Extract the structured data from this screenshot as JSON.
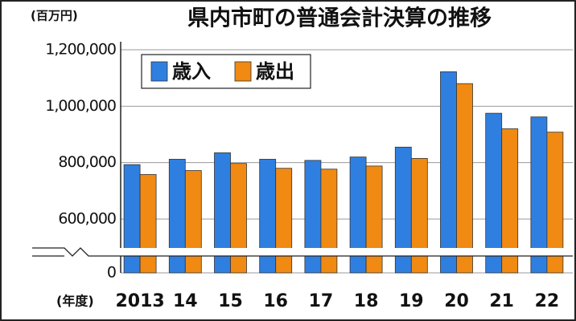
{
  "chart_data": {
    "type": "bar",
    "title": "県内市町の普通会計決算の推移",
    "y_unit": "(百万円)",
    "x_label": "(年度)",
    "categories": [
      "2013",
      "14",
      "15",
      "16",
      "17",
      "18",
      "19",
      "20",
      "21",
      "22"
    ],
    "series": [
      {
        "name": "歳入",
        "color": "#2f7fe0",
        "values": [
          793000,
          812000,
          835000,
          812000,
          808000,
          820000,
          855000,
          1122000,
          975000,
          962000
        ]
      },
      {
        "name": "歳出",
        "color": "#f08a12",
        "values": [
          758000,
          772000,
          797000,
          780000,
          777000,
          788000,
          815000,
          1080000,
          920000,
          908000
        ]
      }
    ],
    "ylim": [
      0,
      1200000
    ],
    "axis_break": [
      0,
      600000
    ],
    "yticks": [
      0,
      {
        "value": 600000,
        "label": "600,000"
      },
      {
        "value": 800000,
        "label": "800,000"
      },
      {
        "value": 1000000,
        "label": "1,000,000"
      },
      {
        "value": 1200000,
        "label": "1,200,000"
      }
    ],
    "grid": true
  }
}
